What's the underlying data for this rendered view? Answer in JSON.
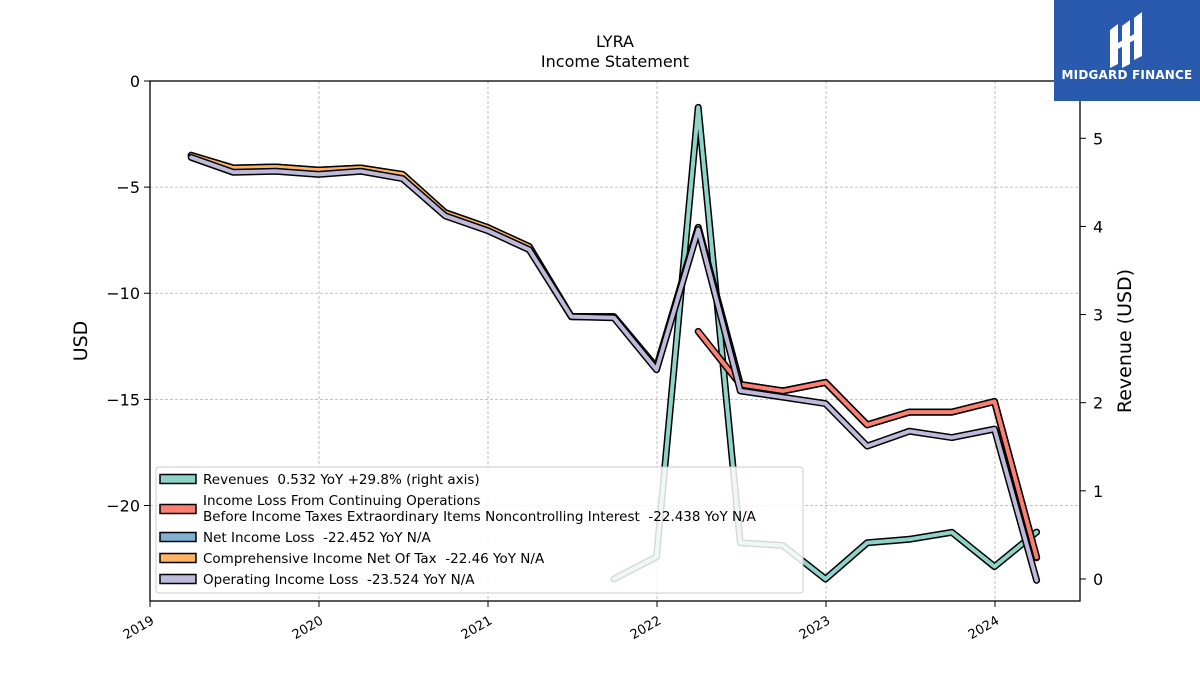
{
  "header": {
    "title": "LYRA",
    "subtitle": "Income Statement"
  },
  "brand": {
    "name": "MIDGARD FINANCE",
    "color": "#2a5aad",
    "icon": "midgard-logo-icon"
  },
  "chart_data": {
    "type": "line",
    "title": "LYRA",
    "subtitle": "Income Statement",
    "ylabel": "USD",
    "ylabel_right": "Revenue (USD)",
    "xlabel": "",
    "x_ticks": [
      "2019",
      "2020",
      "2021",
      "2022",
      "2023",
      "2024"
    ],
    "ylim": [
      -24.5,
      0
    ],
    "ylim_right": [
      -0.25,
      5.65
    ],
    "y_ticks": [
      "0",
      "−5",
      "−10",
      "−15",
      "−20"
    ],
    "y_ticks_right": [
      "0",
      "1",
      "2",
      "3",
      "4",
      "5"
    ],
    "grid": true,
    "legend_position": "lower-left",
    "series": [
      {
        "name": "Revenues  0.532 YoY +29.8% (right axis)",
        "axis": "right",
        "color": "#8dd3c7",
        "x": [
          "2021-09-30",
          "2021-12-31",
          "2022-03-31",
          "2022-06-30",
          "2022-09-30",
          "2022-12-31",
          "2023-03-31",
          "2023-06-30",
          "2023-09-30",
          "2023-12-31",
          "2024-03-31"
        ],
        "values": [
          0.0,
          0.25,
          5.35,
          0.41,
          0.38,
          0.0,
          0.41,
          0.45,
          0.53,
          0.14,
          0.532
        ]
      },
      {
        "name": "Income Loss From Continuing Operations\nBefore Income Taxes Extraordinary Items Noncontrolling Interest  -22.438 YoY N/A",
        "axis": "left",
        "color": "#fb8072",
        "x": [
          "2022-03-31",
          "2022-06-30",
          "2022-09-30",
          "2022-12-31",
          "2023-03-31",
          "2023-06-30",
          "2023-09-30",
          "2023-12-31",
          "2024-03-31"
        ],
        "values": [
          -11.8,
          -14.3,
          -14.6,
          -14.2,
          -16.2,
          -15.6,
          -15.6,
          -15.1,
          -22.438
        ]
      },
      {
        "name": "Net Income Loss  -22.452 YoY N/A",
        "axis": "left",
        "color": "#80b1d3",
        "x": [
          "2019-03-31",
          "2019-06-30",
          "2019-09-30",
          "2019-12-31",
          "2020-03-31",
          "2020-06-30",
          "2020-09-30",
          "2020-12-31",
          "2021-03-31",
          "2021-06-30",
          "2021-09-30",
          "2021-12-31",
          "2022-03-31",
          "2022-06-30",
          "2022-09-30",
          "2022-12-31",
          "2023-03-31",
          "2023-06-30",
          "2023-09-30",
          "2023-12-31",
          "2024-03-31"
        ],
        "values": [
          -3.5,
          -4.1,
          -4.05,
          -4.2,
          -4.1,
          -4.4,
          -6.2,
          -6.9,
          -7.8,
          -11.1,
          -11.1,
          -13.5,
          -6.9,
          -14.3,
          -14.6,
          -14.2,
          -16.2,
          -15.6,
          -15.6,
          -15.1,
          -22.452
        ]
      },
      {
        "name": "Comprehensive Income Net Of Tax  -22.46 YoY N/A",
        "axis": "left",
        "color": "#fdb462",
        "x": [
          "2019-03-31",
          "2019-06-30",
          "2019-09-30",
          "2019-12-31",
          "2020-03-31",
          "2020-06-30",
          "2020-09-30",
          "2020-12-31",
          "2021-03-31",
          "2021-06-30",
          "2021-09-30",
          "2021-12-31",
          "2022-03-31",
          "2022-06-30",
          "2022-09-30",
          "2022-12-31",
          "2023-03-31",
          "2023-06-30",
          "2023-09-30",
          "2023-12-31",
          "2024-03-31"
        ],
        "values": [
          -3.5,
          -4.1,
          -4.05,
          -4.2,
          -4.1,
          -4.4,
          -6.2,
          -6.9,
          -7.8,
          -11.1,
          -11.1,
          -13.5,
          -6.9,
          -14.3,
          -14.6,
          -14.2,
          -16.2,
          -15.6,
          -15.6,
          -15.1,
          -22.46
        ]
      },
      {
        "name": "Operating Income Loss  -23.524 YoY N/A",
        "axis": "left",
        "color": "#bebada",
        "x": [
          "2019-03-31",
          "2019-06-30",
          "2019-09-30",
          "2019-12-31",
          "2020-03-31",
          "2020-06-30",
          "2020-09-30",
          "2020-12-31",
          "2021-03-31",
          "2021-06-30",
          "2021-09-30",
          "2021-12-31",
          "2022-03-31",
          "2022-06-30",
          "2022-09-30",
          "2022-12-31",
          "2023-03-31",
          "2023-06-30",
          "2023-09-30",
          "2023-12-31",
          "2024-03-31"
        ],
        "values": [
          -3.6,
          -4.3,
          -4.25,
          -4.4,
          -4.25,
          -4.6,
          -6.35,
          -7.05,
          -7.95,
          -11.1,
          -11.15,
          -13.6,
          -7.0,
          -14.6,
          -14.9,
          -15.2,
          -17.2,
          -16.5,
          -16.8,
          -16.4,
          -23.524
        ]
      }
    ]
  }
}
